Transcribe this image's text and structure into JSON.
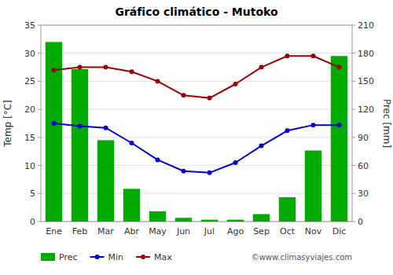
{
  "chart_data": {
    "type": "line",
    "title": "Gráfico climático - Mutoko",
    "categories": [
      "Ene",
      "Feb",
      "Mar",
      "Abr",
      "May",
      "Jun",
      "Jul",
      "Ago",
      "Sep",
      "Oct",
      "Nov",
      "Dic"
    ],
    "series": [
      {
        "name": "Prec",
        "type": "bar",
        "axis": "y2",
        "color": "#00aa00",
        "values": [
          192,
          163,
          87,
          35,
          11,
          4,
          2,
          2,
          8,
          26,
          76,
          177
        ]
      },
      {
        "name": "Min",
        "type": "line",
        "color": "#0000cc",
        "marker": "circle",
        "values": [
          17.5,
          17.0,
          16.7,
          14.0,
          11.0,
          9.0,
          8.7,
          10.5,
          13.5,
          16.2,
          17.2,
          17.2
        ]
      },
      {
        "name": "Max",
        "type": "line",
        "color": "#990000",
        "marker": "circle",
        "values": [
          27.0,
          27.5,
          27.5,
          26.7,
          25.0,
          22.5,
          22.0,
          24.5,
          27.5,
          29.5,
          29.5,
          27.5
        ]
      }
    ],
    "ylabel": "Temp [°C]",
    "y2label": "Prec [mm]",
    "ylim": [
      0,
      35
    ],
    "yticks": [
      0,
      5,
      10,
      15,
      20,
      25,
      30,
      35
    ],
    "y2lim": [
      0,
      210
    ],
    "y2ticks": [
      0,
      30,
      60,
      90,
      120,
      150,
      180,
      210
    ],
    "grid": true,
    "legend": "bottom",
    "annotations": [
      {
        "text": "©www.climasyviajes.com"
      }
    ]
  }
}
